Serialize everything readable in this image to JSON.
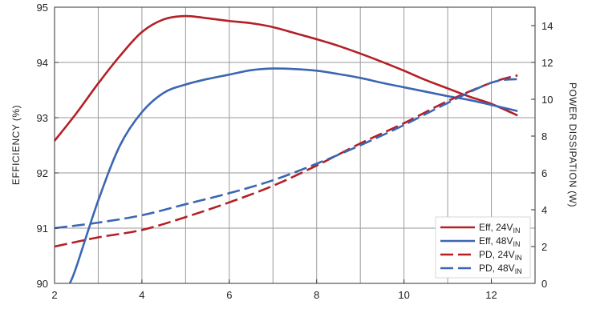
{
  "chart_data": {
    "type": "line",
    "title": "",
    "xlabel": "",
    "ylabel": "EFFICIENCY (%)",
    "y2label": "POWER DISSIPATION (W)",
    "xlim": [
      2,
      13
    ],
    "ylim": [
      90,
      95
    ],
    "y2lim": [
      0,
      15
    ],
    "x_ticks": [
      2,
      4,
      6,
      8,
      10,
      12
    ],
    "y_ticks": [
      90,
      91,
      92,
      93,
      94,
      95
    ],
    "y2_ticks": [
      0,
      2,
      4,
      6,
      8,
      10,
      12,
      14
    ],
    "grid": true,
    "legend_position": "bottom-right",
    "series": [
      {
        "name": "Eff, 24V",
        "sub": "IN",
        "axis": "left",
        "style": "solid",
        "color": "#b32025",
        "x": [
          2,
          2.5,
          3,
          3.5,
          4,
          4.5,
          5,
          5.5,
          6,
          6.5,
          7,
          7.5,
          8,
          8.5,
          9,
          9.5,
          10,
          10.5,
          11,
          11.5,
          12,
          12.6
        ],
        "y": [
          92.58,
          93.08,
          93.62,
          94.12,
          94.55,
          94.78,
          94.84,
          94.8,
          94.75,
          94.71,
          94.64,
          94.53,
          94.42,
          94.3,
          94.16,
          94.01,
          93.85,
          93.68,
          93.53,
          93.38,
          93.25,
          93.04
        ]
      },
      {
        "name": "Eff, 48V",
        "sub": "IN",
        "axis": "left",
        "style": "solid",
        "color": "#3c66b3",
        "x": [
          2.35,
          2.5,
          3,
          3.5,
          4,
          4.5,
          5,
          5.5,
          6,
          6.5,
          7,
          7.5,
          8,
          8.5,
          9,
          9.5,
          10,
          10.5,
          11,
          11.5,
          12,
          12.6
        ],
        "y": [
          90,
          90.3,
          91.5,
          92.5,
          93.1,
          93.45,
          93.6,
          93.7,
          93.78,
          93.86,
          93.89,
          93.88,
          93.85,
          93.79,
          93.72,
          93.63,
          93.55,
          93.47,
          93.39,
          93.32,
          93.23,
          93.12
        ]
      },
      {
        "name": "PD, 24V",
        "sub": "IN",
        "axis": "right",
        "style": "dashed",
        "color": "#b32025",
        "x": [
          2,
          3,
          4,
          5,
          6,
          7,
          8,
          9,
          10,
          11,
          12,
          12.6
        ],
        "y": [
          2.0,
          2.5,
          2.9,
          3.6,
          4.4,
          5.3,
          6.4,
          7.6,
          8.7,
          9.9,
          10.9,
          11.3
        ]
      },
      {
        "name": "PD, 48V",
        "sub": "IN",
        "axis": "right",
        "style": "dashed",
        "color": "#3c66b3",
        "x": [
          2,
          3,
          4,
          5,
          6,
          7,
          8,
          9,
          10,
          11,
          12,
          12.6
        ],
        "y": [
          3.0,
          3.3,
          3.7,
          4.3,
          4.9,
          5.6,
          6.5,
          7.5,
          8.6,
          9.8,
          10.9,
          11.1
        ]
      }
    ]
  }
}
